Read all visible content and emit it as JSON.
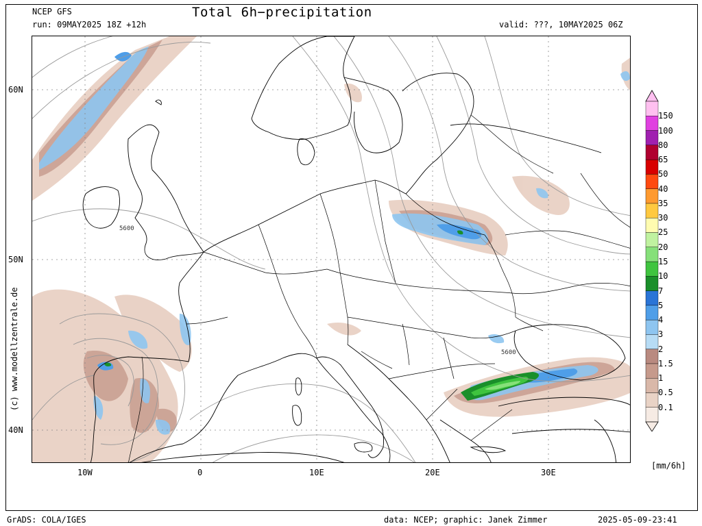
{
  "header": {
    "model": "NCEP GFS",
    "run": "run: 09MAY2025 18Z +12h",
    "title": "Total 6h−precipitation",
    "valid": "valid: ???, 10MAY2025 06Z"
  },
  "footer": {
    "left": "GrADS: COLA/IGES",
    "data": "data: NCEP; graphic: Janek Zimmer",
    "timestamp": "2025-05-09-23:41"
  },
  "watermark": "(c) www.modellzentrale.de",
  "axes": {
    "lat": [
      "60N",
      "50N",
      "40N"
    ],
    "lon": [
      "10W",
      "0",
      "10E",
      "20E",
      "30E"
    ]
  },
  "contours": {
    "label_a": "5600",
    "label_b": "5600"
  },
  "legend": {
    "unit": "[mm/6h]",
    "levels": [
      "0.1",
      "0.5",
      "1",
      "1.5",
      "2",
      "3",
      "4",
      "5",
      "7",
      "10",
      "15",
      "20",
      "25",
      "30",
      "35",
      "40",
      "50",
      "65",
      "80",
      "100",
      "150"
    ],
    "colors": [
      "#f6ebe4",
      "#e9d3c6",
      "#d9b8a9",
      "#c69a8c",
      "#b98a80",
      "#b7dcf5",
      "#8ec5f0",
      "#4f9ee8",
      "#2a74d6",
      "#1a8f2a",
      "#3fc43f",
      "#86e07a",
      "#c0f2a0",
      "#fffcb0",
      "#ffc940",
      "#ff9a30",
      "#ff4a10",
      "#d80000",
      "#b00030",
      "#a020b0",
      "#e040e0",
      "#ffc0f0"
    ]
  }
}
